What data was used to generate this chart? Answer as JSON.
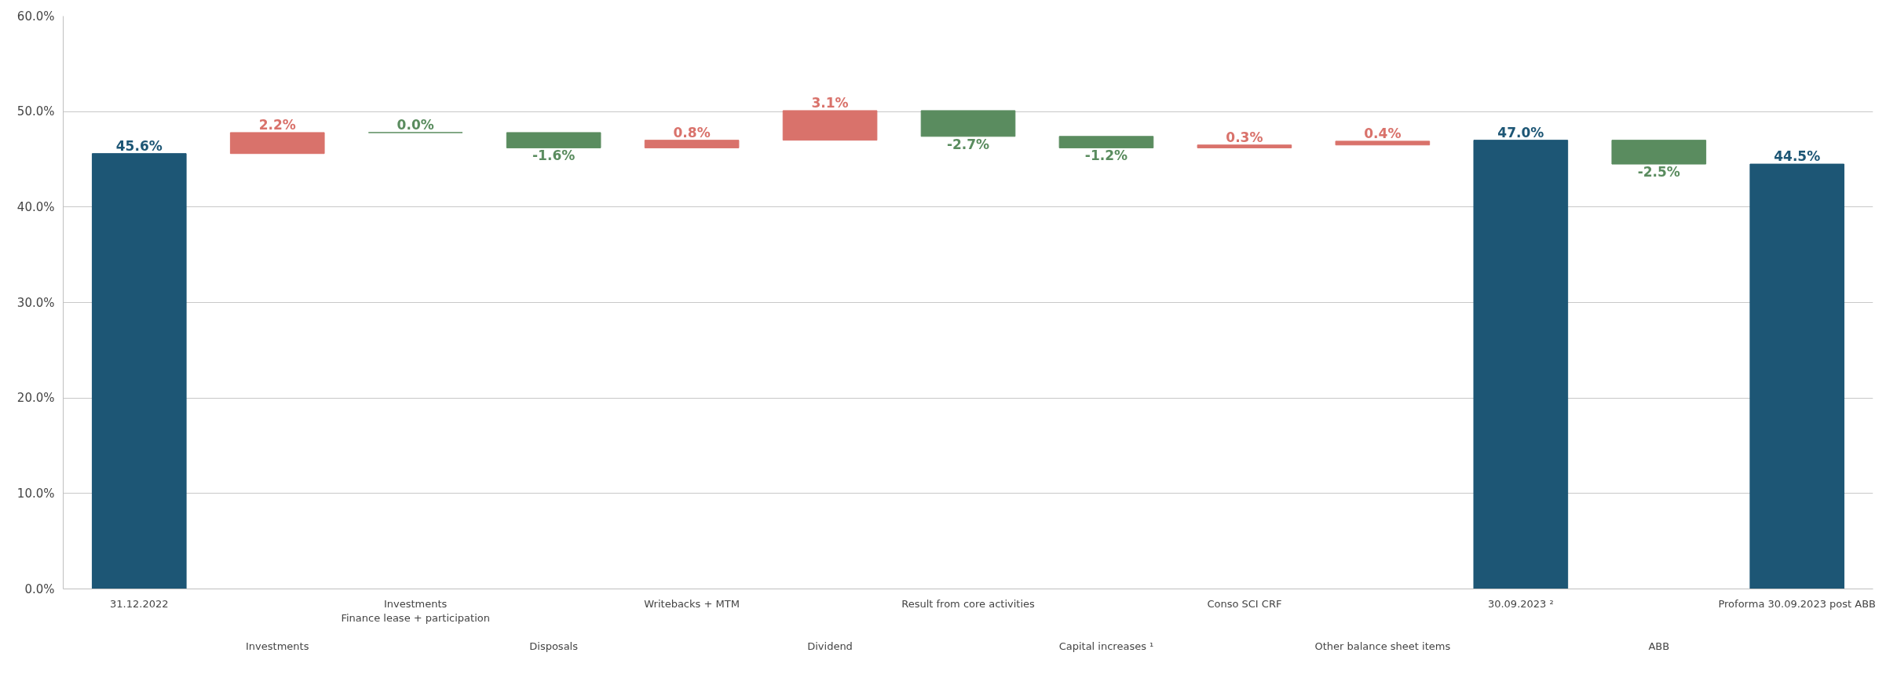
{
  "chart_data": {
    "type": "bar",
    "categories": [
      "31.12.2022",
      "Investments",
      "Investments\nFinance lease + participation",
      "Disposals",
      "Writebacks + MTM",
      "Dividend",
      "Result from core activities",
      "Capital increases ¹",
      "Conso SCI CRF",
      "Other balance sheet items",
      "30.09.2023 ²",
      "ABB",
      "Proforma 30.09.2023 post ABB"
    ],
    "values": [
      45.6,
      2.2,
      0.0,
      -1.6,
      0.8,
      3.1,
      -2.7,
      -1.2,
      0.3,
      0.4,
      47.0,
      -2.5,
      44.5
    ],
    "base": [
      0,
      45.6,
      47.8,
      47.8,
      46.2,
      47.0,
      50.1,
      47.4,
      46.2,
      46.5,
      0,
      47.0,
      0
    ],
    "colors": [
      "#1d5675",
      "#d9726b",
      "#5a8c5f",
      "#5a8c5f",
      "#d9726b",
      "#d9726b",
      "#5a8c5f",
      "#5a8c5f",
      "#d9726b",
      "#d9726b",
      "#1d5675",
      "#5a8c5f",
      "#1d5675"
    ],
    "value_labels": [
      "45.6%",
      "2.2%",
      "0.0%",
      "-1.6%",
      "0.8%",
      "3.1%",
      "-2.7%",
      "-1.2%",
      "0.3%",
      "0.4%",
      "47.0%",
      "-2.5%",
      "44.5%"
    ],
    "ylim": [
      0,
      60
    ],
    "yticks": [
      {
        "value": 0,
        "label": "0.0%"
      },
      {
        "value": 10,
        "label": "10.0%"
      },
      {
        "value": 20,
        "label": "20.0%"
      },
      {
        "value": 30,
        "label": "30.0%"
      },
      {
        "value": 40,
        "label": "40.0%"
      },
      {
        "value": 50,
        "label": "50.0%"
      },
      {
        "value": 60,
        "label": "60.0%"
      }
    ],
    "grid": "y"
  }
}
